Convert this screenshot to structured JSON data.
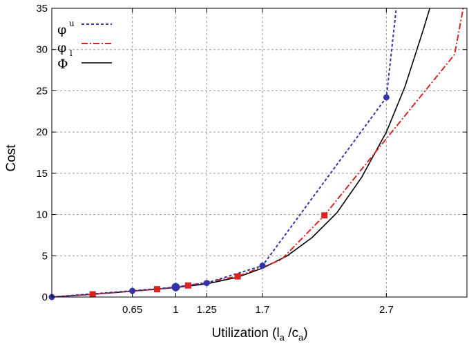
{
  "chart_data": {
    "type": "line",
    "xlabel_main": "Utilization (l",
    "xlabel_sub1": "a",
    "xlabel_mid": " /c",
    "xlabel_sub2": "a",
    "xlabel_end": ")",
    "ylabel": "Cost",
    "xlim": [
      0,
      3.35
    ],
    "ylim": [
      0,
      35
    ],
    "x_ticks": [
      0.65,
      1,
      1.25,
      1.7,
      2.7
    ],
    "x_tick_labels": [
      "0.65",
      "1",
      "1.25",
      "1.7",
      "2.7"
    ],
    "y_ticks": [
      0,
      5,
      10,
      15,
      20,
      25,
      30,
      35
    ],
    "y_tick_labels": [
      "0",
      "5",
      "10",
      "15",
      "20",
      "25",
      "30",
      "35"
    ],
    "grid": true,
    "legend_position": "top-left",
    "series": [
      {
        "name": "φ",
        "name_sup": "u",
        "color": "#3333aa",
        "dash": "4,3",
        "marker": "circle",
        "x": [
          0,
          0.65,
          1,
          1.25,
          1.7,
          2.7,
          2.78
        ],
        "y": [
          0,
          0.75,
          1.2,
          1.7,
          3.8,
          24.2,
          35
        ],
        "marker_x": [
          0,
          0.65,
          1,
          1.25,
          1.7,
          2.7
        ],
        "marker_y": [
          0,
          0.75,
          1.2,
          1.7,
          3.8,
          24.2
        ]
      },
      {
        "name": "φ",
        "name_sub": "l",
        "color": "#dd2222",
        "dash": "9,3,2,3",
        "marker": "square",
        "x": [
          0,
          0.33,
          0.67,
          0.85,
          1.1,
          1.5,
          1.85,
          2.2,
          2.7,
          3.25,
          3.32
        ],
        "y": [
          0,
          0.33,
          0.75,
          0.95,
          1.4,
          2.5,
          4.5,
          9.9,
          19.2,
          29.4,
          35
        ],
        "marker_x": [
          0.33,
          0.85,
          1.1,
          1.5,
          2.2
        ],
        "marker_y": [
          0.33,
          0.95,
          1.4,
          2.5,
          9.9
        ]
      },
      {
        "name": "Φ",
        "color": "#000000",
        "dash": "",
        "marker": "none",
        "x": [
          0,
          0.33,
          0.65,
          1,
          1.25,
          1.5,
          1.7,
          1.9,
          2.1,
          2.3,
          2.5,
          2.7,
          2.85,
          3.0,
          3.05
        ],
        "y": [
          0,
          0.33,
          0.7,
          1.15,
          1.6,
          2.4,
          3.5,
          5.0,
          7.2,
          10.2,
          14.5,
          20.0,
          25.5,
          32.5,
          35
        ]
      }
    ]
  }
}
